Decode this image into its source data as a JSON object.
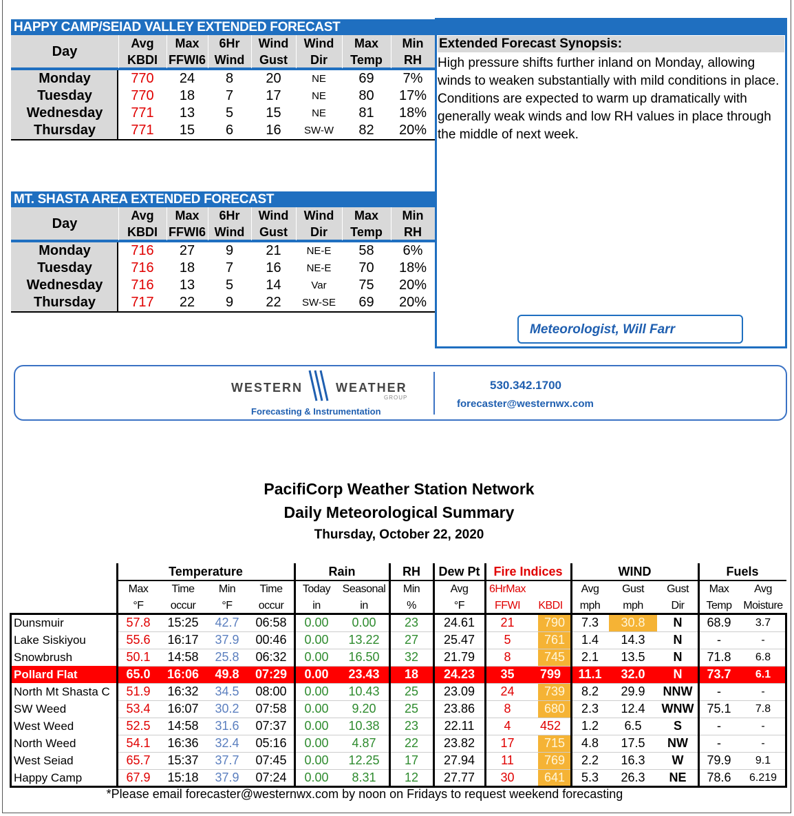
{
  "forecasts": [
    {
      "title": "HAPPY CAMP/SEIAD VALLEY EXTENDED FORECAST",
      "headers": [
        [
          "Day"
        ],
        [
          "Avg",
          "KBDI"
        ],
        [
          "Max",
          "FFWI6"
        ],
        [
          "6Hr",
          "Wind"
        ],
        [
          "Wind",
          "Gust"
        ],
        [
          "Wind",
          "Dir"
        ],
        [
          "Max",
          "Temp"
        ],
        [
          "Min",
          "RH"
        ]
      ],
      "rows": [
        [
          "Monday",
          "770",
          "24",
          "8",
          "20",
          "NE",
          "69",
          "7%"
        ],
        [
          "Tuesday",
          "770",
          "18",
          "7",
          "17",
          "NE",
          "80",
          "17%"
        ],
        [
          "Wednesday",
          "771",
          "13",
          "5",
          "15",
          "NE",
          "81",
          "18%"
        ],
        [
          "Thursday",
          "771",
          "15",
          "6",
          "16",
          "SW-W",
          "82",
          "20%"
        ]
      ]
    },
    {
      "title": "MT. SHASTA AREA EXTENDED FORECAST",
      "headers": [
        [
          "Day"
        ],
        [
          "Avg",
          "KBDI"
        ],
        [
          "Max",
          "FFWI6"
        ],
        [
          "6Hr",
          "Wind"
        ],
        [
          "Wind",
          "Gust"
        ],
        [
          "Wind",
          "Dir"
        ],
        [
          "Max",
          "Temp"
        ],
        [
          "Min",
          "RH"
        ]
      ],
      "rows": [
        [
          "Monday",
          "716",
          "27",
          "9",
          "21",
          "NE-E",
          "58",
          "6%"
        ],
        [
          "Tuesday",
          "716",
          "18",
          "7",
          "16",
          "NE-E",
          "70",
          "18%"
        ],
        [
          "Wednesday",
          "716",
          "13",
          "5",
          "14",
          "Var",
          "75",
          "20%"
        ],
        [
          "Thursday",
          "717",
          "22",
          "9",
          "22",
          "SW-SE",
          "69",
          "20%"
        ]
      ]
    }
  ],
  "synopsis": {
    "title": "Extended Forecast Synopsis:",
    "text": "High pressure shifts further inland on Monday, allowing winds to weaken substantially with mild conditions in place.  Conditions are expected to warm up dramatically with generally weak winds and low RH values in place through the middle of next week.",
    "signature": "Meteorologist, Will Farr"
  },
  "contact": {
    "logo_left": "WESTERN",
    "logo_right": "WEATHER",
    "logo_group": "GROUP",
    "tagline": "Forecasting & Instrumentation",
    "phone": "530.342.1700",
    "email": "forecaster@westernwx.com"
  },
  "summary": {
    "title": "PacifiCorp Weather Station Network",
    "subtitle": "Daily Meteorological Summary",
    "date": "Thursday, October 22, 2020",
    "groups": [
      "Temperature",
      "Rain",
      "RH",
      "Dew Pt",
      "Fire  Indices",
      "WIND",
      "Fuels"
    ],
    "subheaders": [
      [
        "Max",
        "°F"
      ],
      [
        "Time",
        "occur"
      ],
      [
        "Min",
        "°F"
      ],
      [
        "Time",
        "occur"
      ],
      [
        "Today",
        "in"
      ],
      [
        "Seasonal",
        "in"
      ],
      [
        "Min",
        "%"
      ],
      [
        "Avg",
        "°F"
      ],
      [
        "6HrMax",
        "FFWI"
      ],
      [
        "KBDI"
      ],
      [
        "Avg",
        "mph"
      ],
      [
        "Gust",
        "mph"
      ],
      [
        "Gust",
        "Dir"
      ],
      [
        "Max",
        "Temp"
      ],
      [
        "Avg",
        "Moisture"
      ]
    ],
    "rows": [
      [
        "Dunsmuir",
        "57.8",
        "15:25",
        "42.7",
        "06:58",
        "0.00",
        "0.00",
        "23",
        "24.61",
        "21",
        "790",
        "7.3",
        "30.8",
        "N",
        "68.9",
        "3.7"
      ],
      [
        "Lake Siskiyou",
        "55.6",
        "16:17",
        "37.9",
        "00:46",
        "0.00",
        "13.22",
        "27",
        "25.47",
        "5",
        "761",
        "1.4",
        "14.3",
        "N",
        "-",
        "-"
      ],
      [
        "Snowbrush",
        "50.1",
        "14:58",
        "25.8",
        "06:32",
        "0.00",
        "16.50",
        "32",
        "21.79",
        "8",
        "745",
        "2.1",
        "13.5",
        "N",
        "71.8",
        "6.8"
      ],
      [
        "Pollard Flat",
        "65.0",
        "16:06",
        "49.8",
        "07:29",
        "0.00",
        "23.43",
        "18",
        "24.23",
        "35",
        "799",
        "11.1",
        "32.0",
        "N",
        "73.7",
        "6.1"
      ],
      [
        "North Mt Shasta C",
        "51.9",
        "16:32",
        "34.5",
        "08:00",
        "0.00",
        "10.43",
        "25",
        "23.09",
        "24",
        "739",
        "8.2",
        "29.9",
        "NNW",
        "-",
        "-"
      ],
      [
        "SW Weed",
        "53.4",
        "16:07",
        "30.2",
        "07:58",
        "0.00",
        "9.20",
        "25",
        "23.86",
        "8",
        "680",
        "2.3",
        "12.4",
        "WNW",
        "75.1",
        "7.8"
      ],
      [
        "West Weed",
        "52.5",
        "14:58",
        "31.6",
        "07:37",
        "0.00",
        "10.38",
        "23",
        "22.11",
        "4",
        "452",
        "1.2",
        "6.5",
        "S",
        "-",
        "-"
      ],
      [
        "North Weed",
        "54.1",
        "16:36",
        "32.4",
        "05:16",
        "0.00",
        "4.87",
        "22",
        "23.82",
        "17",
        "715",
        "4.8",
        "17.5",
        "NW",
        "-",
        "-"
      ],
      [
        "West Seiad",
        "65.7",
        "15:37",
        "37.7",
        "07:45",
        "0.00",
        "12.25",
        "17",
        "27.94",
        "11",
        "769",
        "2.2",
        "16.3",
        "W",
        "79.9",
        "9.1"
      ],
      [
        "Happy Camp",
        "67.9",
        "15:18",
        "37.9",
        "07:24",
        "0.00",
        "8.31",
        "12",
        "27.77",
        "30",
        "641",
        "5.3",
        "26.3",
        "NE",
        "78.6",
        "6.219"
      ]
    ],
    "footnote": "*Please email forecaster@westernwx.com by noon on Fridays to request weekend forecasting"
  }
}
